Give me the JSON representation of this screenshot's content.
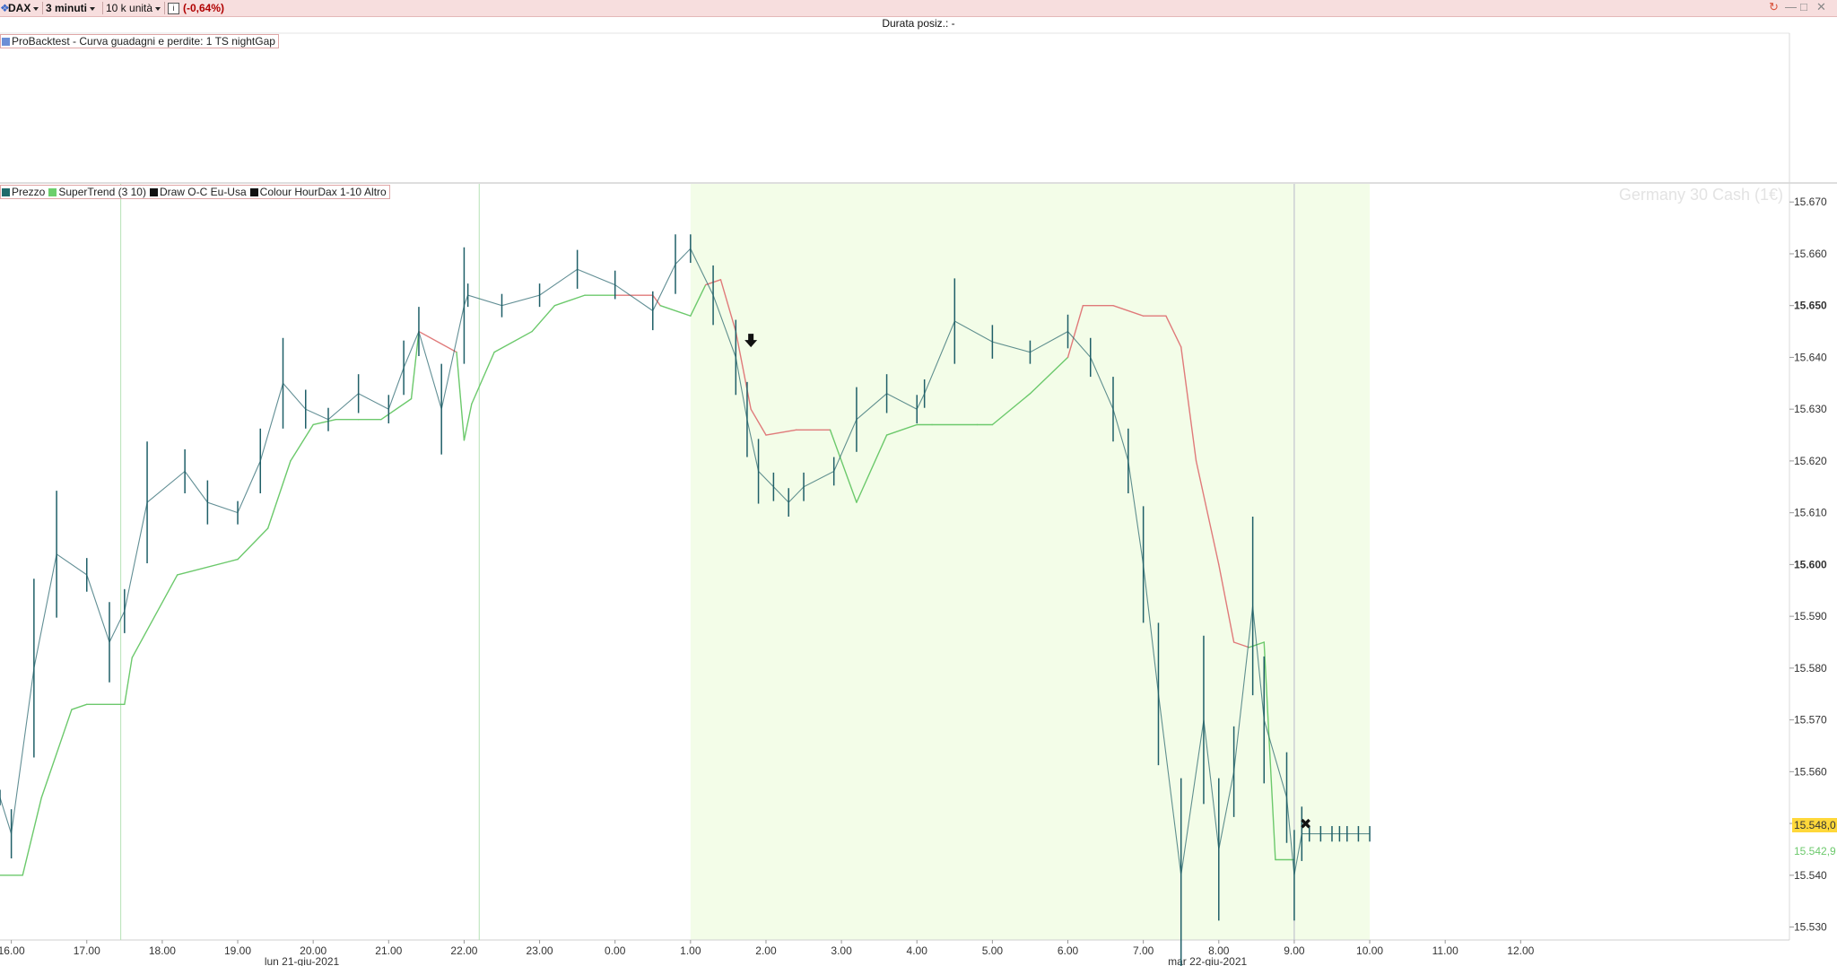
{
  "toolbar": {
    "instrument": "DAX",
    "timeframe": "3 minuti",
    "units": "10 k unità",
    "info_icon": "info-icon",
    "change": "(-0,64%)"
  },
  "status": {
    "position_duration": "Durata posiz.: -"
  },
  "backtest_panel": {
    "legend": "ProBacktest - Curva guadagni e perdite: 1 TS nightGap"
  },
  "price_panel": {
    "instrument_watermark": "Germany 30 Cash (1€)",
    "legend": [
      {
        "label": "Prezzo",
        "color": "#1f6b6b"
      },
      {
        "label": "SuperTrend (3 10)",
        "color": "#6ccf6c"
      },
      {
        "label": "Draw O-C Eu-Usa",
        "color": "#111111"
      },
      {
        "label": "Colour HourDax 1-10",
        "color": "#111111"
      },
      {
        "label": "Altro",
        "color": ""
      }
    ],
    "last_price": "15.548,0",
    "supertrend_value": "15.542,9"
  },
  "colors": {
    "price": "#1f5f68",
    "supertrend_up": "#6cc96c",
    "supertrend_down": "#e07a7a",
    "session_shade": "#f3fde8",
    "last_price_tag": "#ffd83a"
  },
  "chart_data": {
    "type": "line",
    "x_ticks": [
      "16.00",
      "17.00",
      "18.00",
      "19.00",
      "20.00",
      "21.00",
      "22.00",
      "23.00",
      "0.00",
      "1.00",
      "2.00",
      "3.00",
      "4.00",
      "5.00",
      "6.00",
      "7.00",
      "8.00",
      "9.00",
      "10.00",
      "11.00",
      "12.00"
    ],
    "date_labels": [
      "lun 21-giu-2021",
      "mar 22-giu-2021"
    ],
    "y_ticks": [
      "15.530",
      "15.540",
      "15.550",
      "15.560",
      "15.570",
      "15.580",
      "15.590",
      "15.600",
      "15.610",
      "15.620",
      "15.630",
      "15.640",
      "15.650",
      "15.660",
      "15.670"
    ],
    "ylim": [
      15527.5,
      15673.5
    ],
    "series": [
      {
        "name": "Prezzo",
        "x": [
          15.85,
          16.0,
          16.3,
          16.6,
          17.0,
          17.3,
          17.5,
          17.8,
          18.3,
          18.6,
          19.0,
          19.3,
          19.6,
          19.9,
          20.2,
          20.6,
          21.0,
          21.2,
          21.4,
          21.7,
          22.0,
          22.05,
          22.5,
          23.0,
          23.5,
          24.0,
          24.5,
          24.8,
          25.0,
          25.3,
          25.6,
          25.75,
          25.9,
          26.1,
          26.3,
          26.5,
          26.9,
          27.2,
          27.6,
          28.0,
          28.1,
          28.5,
          29.0,
          29.5,
          30.0,
          30.3,
          30.6,
          30.8,
          31.0,
          31.2,
          31.5,
          31.8,
          32.0,
          32.2,
          32.45,
          32.6,
          32.9,
          33.0,
          33.1,
          33.2,
          33.35,
          33.5,
          33.6,
          33.7,
          33.85,
          34.0
        ],
        "values": [
          15555,
          15548,
          15580,
          15602,
          15598,
          15585,
          15591,
          15612,
          15618,
          15612,
          15610,
          15620,
          15635,
          15630,
          15628,
          15633,
          15630,
          15638,
          15645,
          15630,
          15650,
          15652,
          15650,
          15652,
          15657,
          15654,
          15649,
          15658,
          15661,
          15652,
          15640,
          15628,
          15618,
          15615,
          15612,
          15615,
          15618,
          15628,
          15633,
          15630,
          15633,
          15647,
          15643,
          15641,
          15645,
          15640,
          15630,
          15620,
          15600,
          15575,
          15540,
          15570,
          15545,
          15560,
          15592,
          15570,
          15555,
          15540,
          15548,
          15548,
          15548,
          15548,
          15548,
          15548,
          15548,
          15548
        ]
      },
      {
        "name": "SuperTrend (3 10)",
        "x": [
          15.85,
          16.15,
          16.4,
          16.8,
          17.0,
          17.5,
          17.6,
          18.2,
          19.0,
          19.4,
          19.7,
          20.0,
          20.3,
          20.6,
          20.9,
          21.3,
          21.4,
          21.9,
          22.0,
          22.1,
          22.4,
          22.9,
          23.2,
          23.6,
          24.0,
          24.5,
          24.6,
          25.0,
          25.2,
          25.4,
          25.6,
          25.8,
          26.0,
          26.4,
          26.85,
          27.2,
          27.6,
          28.0,
          28.2,
          28.8,
          29.0,
          29.5,
          30.0,
          30.2,
          30.6,
          31.0,
          31.3,
          31.5,
          31.7,
          32.0,
          32.2,
          32.4,
          32.6,
          32.75,
          33.0
        ],
        "values": [
          15540,
          15540,
          15555,
          15572,
          15573,
          15573,
          15582,
          15598,
          15601,
          15607,
          15620,
          15627,
          15628,
          15628,
          15628,
          15632,
          15645,
          15641,
          15624,
          15631,
          15641,
          15645,
          15650,
          15652,
          15652,
          15652,
          15650,
          15648,
          15654,
          15655,
          15645,
          15630,
          15625,
          15626,
          15626,
          15612,
          15625,
          15627,
          15627,
          15627,
          15627,
          15633,
          15640,
          15650,
          15650,
          15648,
          15648,
          15642,
          15620,
          15600,
          15585,
          15584,
          15585,
          15543,
          15543
        ]
      }
    ],
    "markers": [
      {
        "type": "sell-arrow",
        "x": 25.8,
        "y": 15643
      },
      {
        "type": "exit-cross",
        "x": 33.15,
        "y": 15550
      }
    ],
    "session_shade": {
      "x_start": 25.0,
      "x_end": 34.0
    },
    "vertical_lines": [
      17.45,
      22.2,
      33.0
    ]
  }
}
